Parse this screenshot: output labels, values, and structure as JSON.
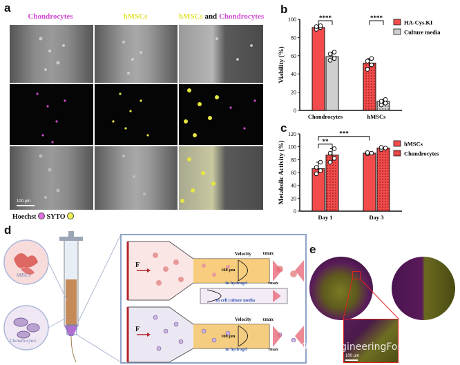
{
  "panels": {
    "a": {
      "letter": "a",
      "col1_title": "Chondrocytes",
      "col2_title": "hMSCs",
      "col3_title_a": "hMSCs",
      "col3_title_b": " and ",
      "col3_title_c": "Chondrocytes",
      "scale_bar": "100 μm",
      "legend_hoechst": "Hoechst",
      "legend_syto": "SYTO",
      "colors": {
        "magenta": "#d04ad0",
        "yellow": "#e2e23a"
      }
    },
    "b": {
      "letter": "b"
    },
    "c": {
      "letter": "c"
    },
    "d": {
      "letter": "d",
      "label_hmscs": "hMSCs",
      "label_chondrocytes": "Chondrocytes",
      "force": "F",
      "velocity": "Velocity",
      "tau": "τmax",
      "width_label": "108 μm",
      "in_hydrogel": "In  hydrogel",
      "in_media": "In  cell culture media"
    },
    "e": {
      "letter": "e",
      "scale_bar": "100 μm"
    },
    "watermark": "公众号 · EngineeringForLife"
  },
  "chart_data": [
    {
      "type": "bar",
      "panel": "b",
      "categories": [
        "Chondrocytes",
        "hMSCs"
      ],
      "series": [
        {
          "name": "HA-Cys.KI",
          "values": [
            91,
            52
          ],
          "color": "#f24b4b"
        },
        {
          "name": "Culture media",
          "values": [
            59,
            10
          ],
          "color": "#cfcfcf"
        }
      ],
      "points": [
        [
          [
            89,
            91,
            92,
            93
          ],
          [
            55,
            57,
            62,
            64
          ]
        ],
        [
          [
            45,
            50,
            54,
            57
          ],
          [
            6,
            8,
            10,
            12
          ]
        ]
      ],
      "ylabel": "Viability (%)",
      "ylim": [
        0,
        100
      ],
      "yticks": [
        0,
        20,
        40,
        60,
        80,
        100
      ],
      "significance": [
        "****",
        "****"
      ],
      "legend": "top-right"
    },
    {
      "type": "bar",
      "panel": "c",
      "categories": [
        "Day 1",
        "Day 3"
      ],
      "series": [
        {
          "name": "hMSCs",
          "values": [
            66,
            90
          ],
          "color": "#f24b4b"
        },
        {
          "name": "Chondrocytes",
          "values": [
            87,
            98
          ],
          "color": "#f24b4b"
        }
      ],
      "points": [
        [
          [
            58,
            63,
            68,
            76
          ],
          [
            76,
            82,
            90,
            97
          ]
        ],
        [
          [
            89,
            90,
            91
          ],
          [
            96,
            98,
            99
          ]
        ]
      ],
      "ylabel": "Metabolic Activity (%)",
      "ylim": [
        0,
        120
      ],
      "yticks": [
        0,
        20,
        40,
        60,
        80,
        100,
        120
      ],
      "significance": [
        "**",
        "***"
      ],
      "legend": "top-right"
    }
  ]
}
